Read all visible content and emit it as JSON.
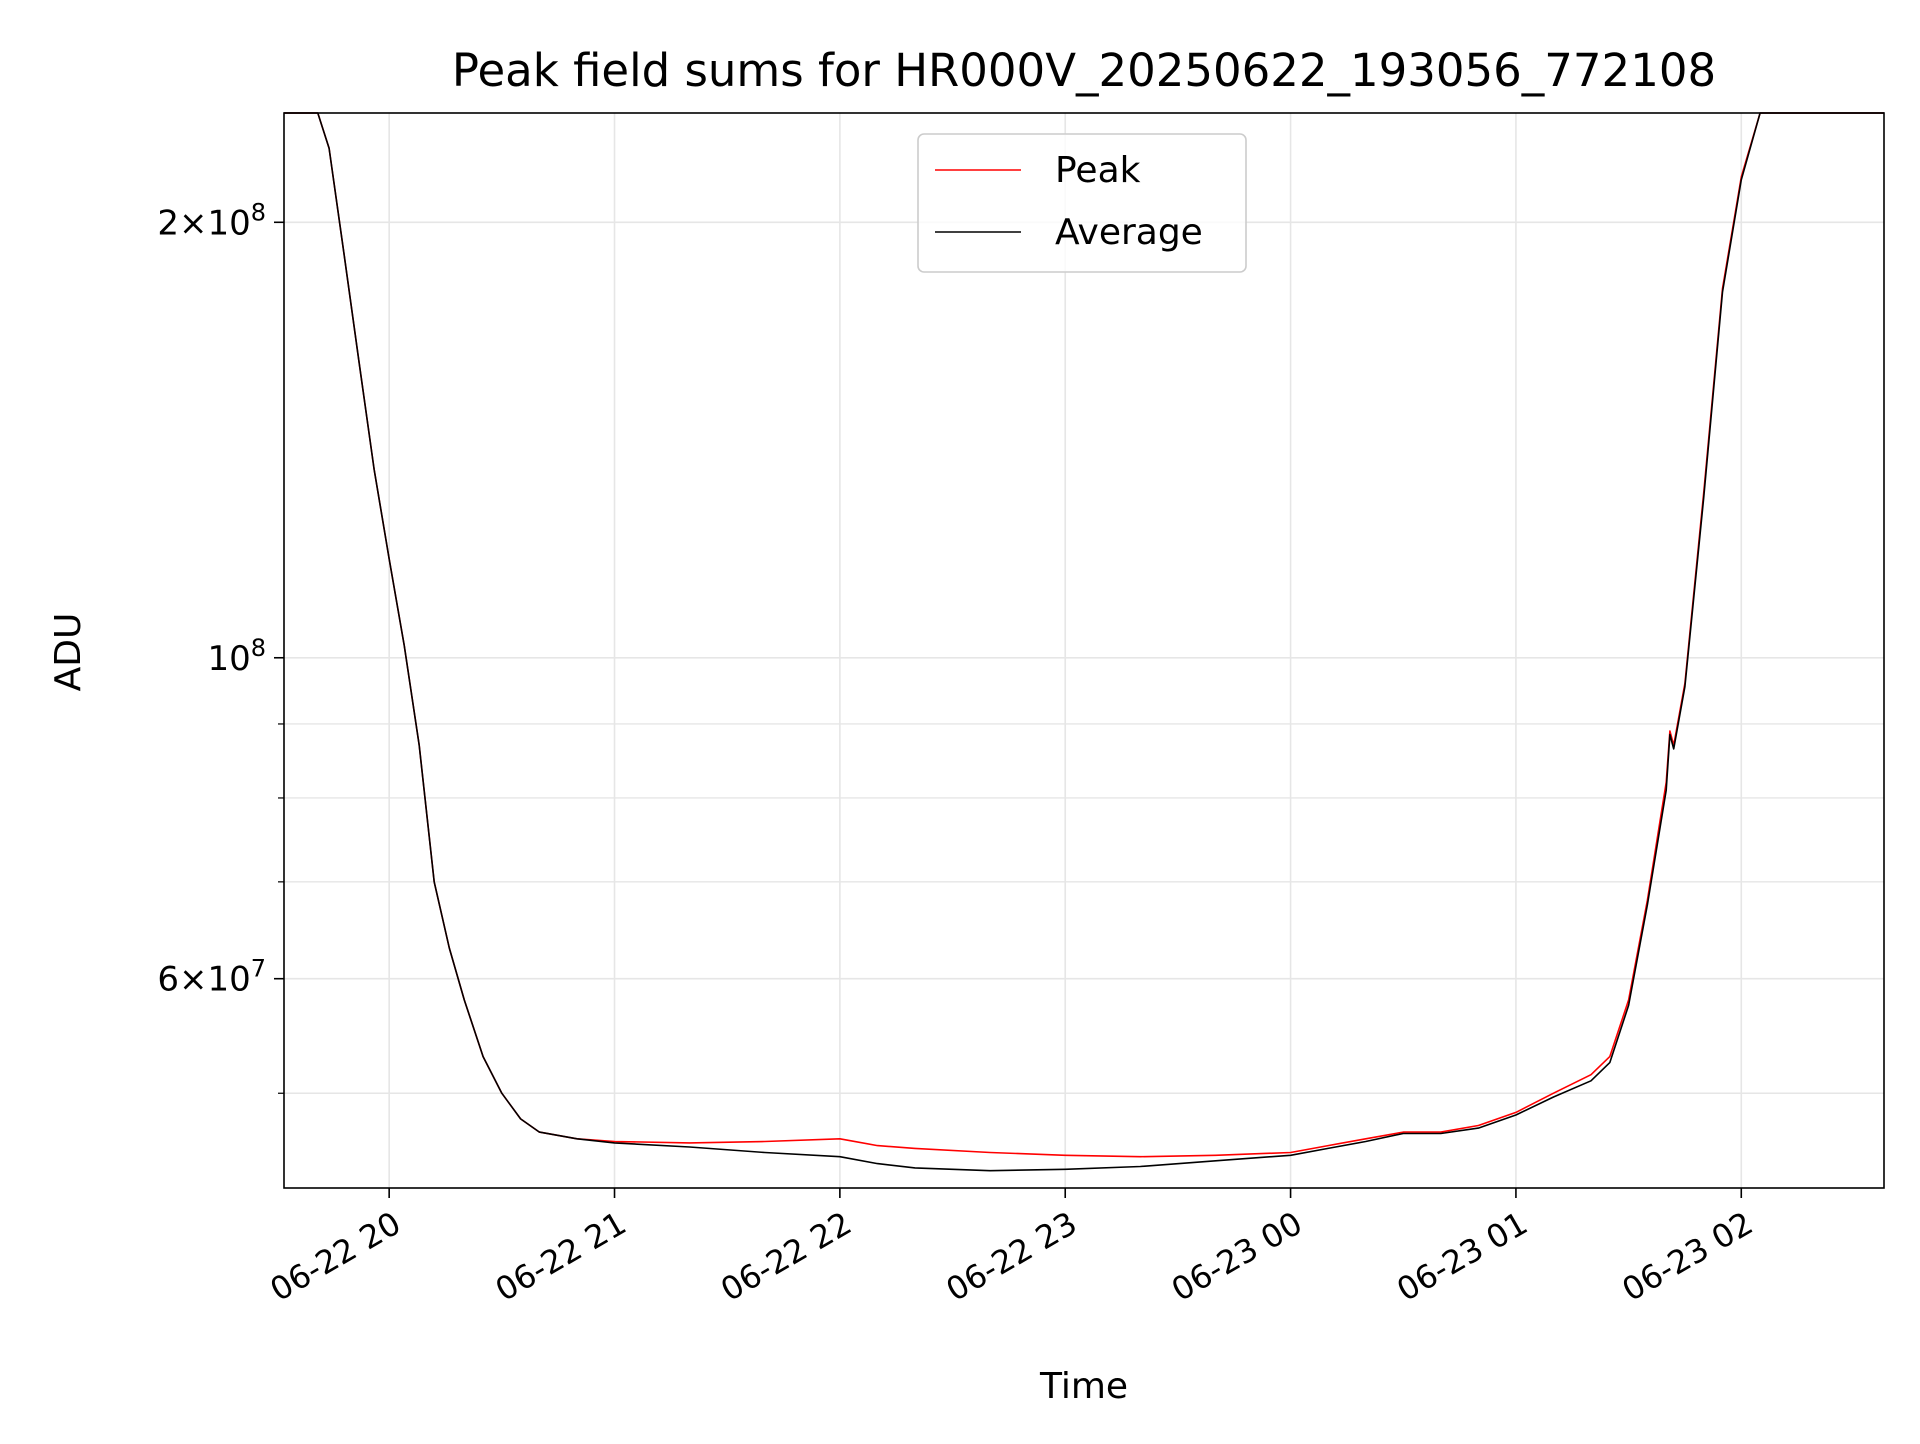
{
  "chart_data": {
    "type": "line",
    "title": "Peak field sums for HR000V_20250622_193056_772108",
    "xlabel": "Time",
    "ylabel": "ADU",
    "yscale": "log",
    "xlim": [
      "2025-06-22 19:32",
      "2025-06-23 02:38"
    ],
    "ylim": [
      43000000,
      238000000
    ],
    "grid": true,
    "legend_position": "top-center",
    "x_ticks": [
      {
        "t": "2025-06-22 20:00",
        "label": "06-22 20"
      },
      {
        "t": "2025-06-22 21:00",
        "label": "06-22 21"
      },
      {
        "t": "2025-06-22 22:00",
        "label": "06-22 22"
      },
      {
        "t": "2025-06-22 23:00",
        "label": "06-22 23"
      },
      {
        "t": "2025-06-23 00:00",
        "label": "06-23 00"
      },
      {
        "t": "2025-06-23 01:00",
        "label": "06-23 01"
      },
      {
        "t": "2025-06-23 02:00",
        "label": "06-23 02"
      }
    ],
    "y_major_ticks": [
      {
        "value": 200000000,
        "mant": "2",
        "exp": "8"
      },
      {
        "value": 100000000,
        "mant": "",
        "exp": "8"
      },
      {
        "value": 60000000,
        "mant": "6",
        "exp": "7"
      }
    ],
    "y_minor_ticks": [
      50000000,
      70000000,
      80000000,
      90000000
    ],
    "series": [
      {
        "name": "Peak",
        "color": "#ff0000",
        "points": [
          [
            "2025-06-22 19:32",
            238000000
          ],
          [
            "2025-06-22 19:41",
            238000000
          ],
          [
            "2025-06-22 19:44",
            225000000
          ],
          [
            "2025-06-22 19:48",
            190000000
          ],
          [
            "2025-06-22 19:52",
            160000000
          ],
          [
            "2025-06-22 19:56",
            135000000
          ],
          [
            "2025-06-22 20:00",
            117000000
          ],
          [
            "2025-06-22 20:04",
            102000000
          ],
          [
            "2025-06-22 20:08",
            87000000
          ],
          [
            "2025-06-22 20:12",
            70000000
          ],
          [
            "2025-06-22 20:16",
            63000000
          ],
          [
            "2025-06-22 20:20",
            58000000
          ],
          [
            "2025-06-22 20:25",
            53000000
          ],
          [
            "2025-06-22 20:30",
            50000000
          ],
          [
            "2025-06-22 20:35",
            48000000
          ],
          [
            "2025-06-22 20:40",
            47000000
          ],
          [
            "2025-06-22 20:50",
            46500000
          ],
          [
            "2025-06-22 21:00",
            46300000
          ],
          [
            "2025-06-22 21:20",
            46200000
          ],
          [
            "2025-06-22 21:40",
            46300000
          ],
          [
            "2025-06-22 22:00",
            46500000
          ],
          [
            "2025-06-22 22:10",
            46000000
          ],
          [
            "2025-06-22 22:20",
            45800000
          ],
          [
            "2025-06-22 22:40",
            45500000
          ],
          [
            "2025-06-22 23:00",
            45300000
          ],
          [
            "2025-06-22 23:20",
            45200000
          ],
          [
            "2025-06-22 23:40",
            45300000
          ],
          [
            "2025-06-23 00:00",
            45500000
          ],
          [
            "2025-06-23 00:10",
            46000000
          ],
          [
            "2025-06-23 00:20",
            46500000
          ],
          [
            "2025-06-23 00:30",
            47000000
          ],
          [
            "2025-06-23 00:40",
            47000000
          ],
          [
            "2025-06-23 00:50",
            47500000
          ],
          [
            "2025-06-23 01:00",
            48500000
          ],
          [
            "2025-06-23 01:10",
            50000000
          ],
          [
            "2025-06-23 01:20",
            51500000
          ],
          [
            "2025-06-23 01:25",
            53000000
          ],
          [
            "2025-06-23 01:30",
            58000000
          ],
          [
            "2025-06-23 01:35",
            68000000
          ],
          [
            "2025-06-23 01:40",
            82000000
          ],
          [
            "2025-06-23 01:41",
            89000000
          ],
          [
            "2025-06-23 01:42",
            87000000
          ],
          [
            "2025-06-23 01:45",
            96000000
          ],
          [
            "2025-06-23 01:50",
            130000000
          ],
          [
            "2025-06-23 01:55",
            180000000
          ],
          [
            "2025-06-23 02:00",
            215000000
          ],
          [
            "2025-06-23 02:05",
            238000000
          ],
          [
            "2025-06-23 02:38",
            238000000
          ]
        ]
      },
      {
        "name": "Average",
        "color": "#000000",
        "points": [
          [
            "2025-06-22 19:32",
            238000000
          ],
          [
            "2025-06-22 19:41",
            238000000
          ],
          [
            "2025-06-22 19:44",
            225000000
          ],
          [
            "2025-06-22 19:48",
            190000000
          ],
          [
            "2025-06-22 19:52",
            160000000
          ],
          [
            "2025-06-22 19:56",
            135000000
          ],
          [
            "2025-06-22 20:00",
            117000000
          ],
          [
            "2025-06-22 20:04",
            102000000
          ],
          [
            "2025-06-22 20:08",
            87000000
          ],
          [
            "2025-06-22 20:12",
            70000000
          ],
          [
            "2025-06-22 20:16",
            63000000
          ],
          [
            "2025-06-22 20:20",
            58000000
          ],
          [
            "2025-06-22 20:25",
            53000000
          ],
          [
            "2025-06-22 20:30",
            50000000
          ],
          [
            "2025-06-22 20:35",
            48000000
          ],
          [
            "2025-06-22 20:40",
            47000000
          ],
          [
            "2025-06-22 20:50",
            46500000
          ],
          [
            "2025-06-22 21:00",
            46200000
          ],
          [
            "2025-06-22 21:20",
            45900000
          ],
          [
            "2025-06-22 21:40",
            45500000
          ],
          [
            "2025-06-22 22:00",
            45200000
          ],
          [
            "2025-06-22 22:10",
            44700000
          ],
          [
            "2025-06-22 22:20",
            44400000
          ],
          [
            "2025-06-22 22:40",
            44200000
          ],
          [
            "2025-06-22 23:00",
            44300000
          ],
          [
            "2025-06-22 23:20",
            44500000
          ],
          [
            "2025-06-22 23:40",
            44900000
          ],
          [
            "2025-06-23 00:00",
            45300000
          ],
          [
            "2025-06-23 00:10",
            45800000
          ],
          [
            "2025-06-23 00:20",
            46300000
          ],
          [
            "2025-06-23 00:30",
            46900000
          ],
          [
            "2025-06-23 00:40",
            46900000
          ],
          [
            "2025-06-23 00:50",
            47300000
          ],
          [
            "2025-06-23 01:00",
            48300000
          ],
          [
            "2025-06-23 01:10",
            49700000
          ],
          [
            "2025-06-23 01:20",
            51000000
          ],
          [
            "2025-06-23 01:25",
            52500000
          ],
          [
            "2025-06-23 01:30",
            57500000
          ],
          [
            "2025-06-23 01:35",
            67500000
          ],
          [
            "2025-06-23 01:40",
            81000000
          ],
          [
            "2025-06-23 01:41",
            88500000
          ],
          [
            "2025-06-23 01:42",
            86500000
          ],
          [
            "2025-06-23 01:45",
            95500000
          ],
          [
            "2025-06-23 01:50",
            129000000
          ],
          [
            "2025-06-23 01:55",
            179000000
          ],
          [
            "2025-06-23 02:00",
            214000000
          ],
          [
            "2025-06-23 02:05",
            238000000
          ],
          [
            "2025-06-23 02:38",
            238000000
          ]
        ]
      }
    ]
  }
}
